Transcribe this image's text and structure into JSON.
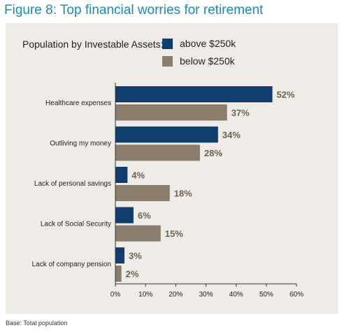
{
  "title": "Figure 8: Top financial worries for retirement",
  "legend": {
    "title": "Population by Investable Assets:",
    "items": [
      {
        "label": "above $250k",
        "color": "#0e3d6e"
      },
      {
        "label": "below $250k",
        "color": "#8b7d6b"
      }
    ]
  },
  "note": "Base: Total population",
  "colors": {
    "label_text": "#6e6250",
    "axis": "#333333"
  },
  "chart_data": {
    "type": "bar",
    "orientation": "horizontal",
    "title": "Figure 8: Top financial worries for retirement",
    "categories": [
      "Healthcare expenses",
      "Outliving my money",
      "Lack of personal savings",
      "Lack of Social Security",
      "Lack of company pension"
    ],
    "series": [
      {
        "name": "above $250k",
        "values": [
          52,
          34,
          4,
          6,
          3
        ]
      },
      {
        "name": "below $250k",
        "values": [
          37,
          28,
          18,
          15,
          2
        ]
      }
    ],
    "value_labels": [
      [
        "52%",
        "34%",
        "4%",
        "6%",
        "3%"
      ],
      [
        "37%",
        "28%",
        "18%",
        "15%",
        "2%"
      ]
    ],
    "xlim": [
      0,
      60
    ],
    "xticks": [
      "0%",
      "10%",
      "20%",
      "30%",
      "40%",
      "50%",
      "60%"
    ],
    "grid": false,
    "legend_position": "top-left"
  }
}
